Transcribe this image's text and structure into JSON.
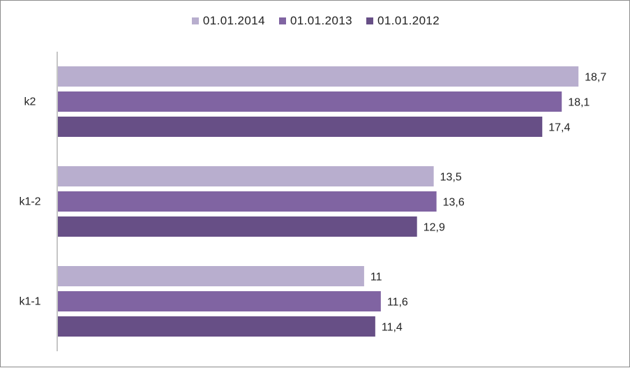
{
  "chart_data": {
    "type": "bar",
    "orientation": "horizontal",
    "title": "",
    "xlabel": "",
    "ylabel": "",
    "categories": [
      "k2",
      "k1-2",
      "k1-1"
    ],
    "series": [
      {
        "name": "01.01.2014",
        "color": "#b8aece",
        "values": [
          18.7,
          13.5,
          11
        ],
        "labels": [
          "18,7",
          "13,5",
          "11"
        ]
      },
      {
        "name": "01.01.2013",
        "color": "#8064a2",
        "values": [
          18.1,
          13.6,
          11.6
        ],
        "labels": [
          "18,1",
          "13,6",
          "11,6"
        ]
      },
      {
        "name": "01.01.2012",
        "color": "#674f86",
        "values": [
          17.4,
          12.9,
          11.4
        ],
        "labels": [
          "17,4",
          "12,9",
          "11,4"
        ]
      }
    ],
    "xlim": [
      0,
      19
    ],
    "grid": false,
    "legend_position": "top"
  }
}
